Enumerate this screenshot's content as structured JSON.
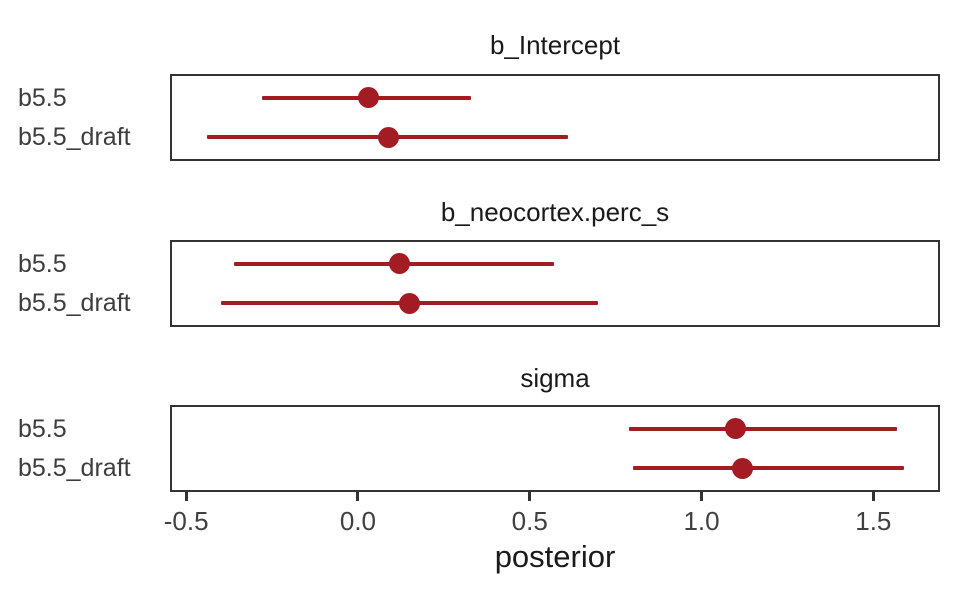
{
  "chart_data": {
    "type": "scatter",
    "subtype": "pointrange-coefficient-comparison",
    "xlabel": "posterior",
    "ylabel": "",
    "xlim": [
      -0.547,
      1.694
    ],
    "x_ticks": [
      -0.5,
      0.0,
      0.5,
      1.0,
      1.5
    ],
    "x_tick_labels": [
      "-0.5",
      "0.0",
      "0.5",
      "1.0",
      "1.5"
    ],
    "grid": false,
    "legend": "none",
    "models": [
      "b5.5",
      "b5.5_draft"
    ],
    "facets": [
      {
        "title": "b_Intercept",
        "rows": [
          {
            "model": "b5.5",
            "estimate": 0.03,
            "lower": -0.28,
            "upper": 0.33
          },
          {
            "model": "b5.5_draft",
            "estimate": 0.09,
            "lower": -0.44,
            "upper": 0.61
          }
        ]
      },
      {
        "title": "b_neocortex.perc_s",
        "rows": [
          {
            "model": "b5.5",
            "estimate": 0.12,
            "lower": -0.36,
            "upper": 0.57
          },
          {
            "model": "b5.5_draft",
            "estimate": 0.15,
            "lower": -0.4,
            "upper": 0.7
          }
        ]
      },
      {
        "title": "sigma",
        "rows": [
          {
            "model": "b5.5",
            "estimate": 1.1,
            "lower": 0.79,
            "upper": 1.57
          },
          {
            "model": "b5.5_draft",
            "estimate": 1.12,
            "lower": 0.8,
            "upper": 1.59
          }
        ]
      }
    ],
    "colors": {
      "interval": "#A31C24",
      "panel_border": "#333333",
      "tick": "#333333",
      "axis_text": "#404040",
      "title_text": "#1A1A1A",
      "background": "#FFFFFF"
    }
  }
}
